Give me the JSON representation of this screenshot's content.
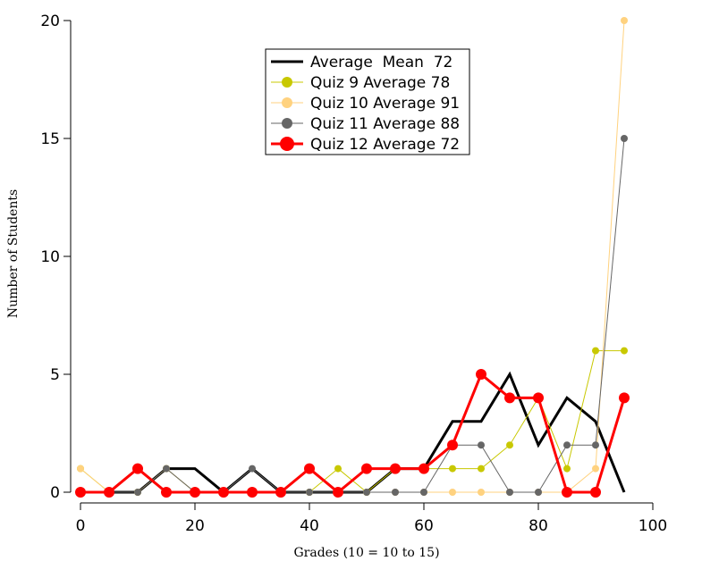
{
  "chart_data": {
    "type": "line",
    "xlabel": "Grades (10 = 10 to 15)",
    "ylabel": "Number of Students",
    "xlim": [
      0,
      100
    ],
    "ylim": [
      0,
      20
    ],
    "x_ticks": [
      0,
      20,
      40,
      60,
      80,
      100
    ],
    "y_ticks": [
      0,
      5,
      10,
      15,
      20
    ],
    "x": [
      0,
      5,
      10,
      15,
      20,
      25,
      30,
      35,
      40,
      45,
      50,
      55,
      60,
      65,
      70,
      75,
      80,
      85,
      90,
      95
    ],
    "legend_position": "top-center",
    "grid": false,
    "series": [
      {
        "name": "Average  Mean  72",
        "color": "#000000",
        "marker": "none",
        "values": [
          0,
          0,
          0,
          1,
          1,
          0,
          1,
          0,
          0,
          0,
          0,
          1,
          1,
          3,
          3,
          5,
          2,
          4,
          3,
          0
        ]
      },
      {
        "name": "Quiz 9 Average 78",
        "color": "#c8c800",
        "marker": "circle",
        "values": [
          1,
          0,
          0,
          1,
          0,
          0,
          0,
          0,
          0,
          1,
          0,
          1,
          1,
          1,
          1,
          2,
          4,
          1,
          6,
          6
        ]
      },
      {
        "name": "Quiz 10 Average 91",
        "color": "#ffd27f",
        "marker": "circle",
        "values": [
          1,
          0,
          0,
          1,
          0,
          0,
          0,
          0,
          0,
          0,
          0,
          0,
          0,
          0,
          0,
          0,
          0,
          0,
          1,
          20
        ]
      },
      {
        "name": "Quiz 11 Average 88",
        "color": "#666666",
        "marker": "circle",
        "values": [
          0,
          0,
          0,
          1,
          0,
          0,
          1,
          0,
          0,
          0,
          0,
          0,
          0,
          2,
          2,
          0,
          0,
          2,
          2,
          15
        ]
      },
      {
        "name": "Quiz 12 Average 72",
        "color": "#ff0000",
        "marker": "circle",
        "values": [
          0,
          0,
          1,
          0,
          0,
          0,
          0,
          0,
          1,
          0,
          1,
          1,
          1,
          2,
          5,
          4,
          4,
          0,
          0,
          4
        ]
      }
    ]
  }
}
